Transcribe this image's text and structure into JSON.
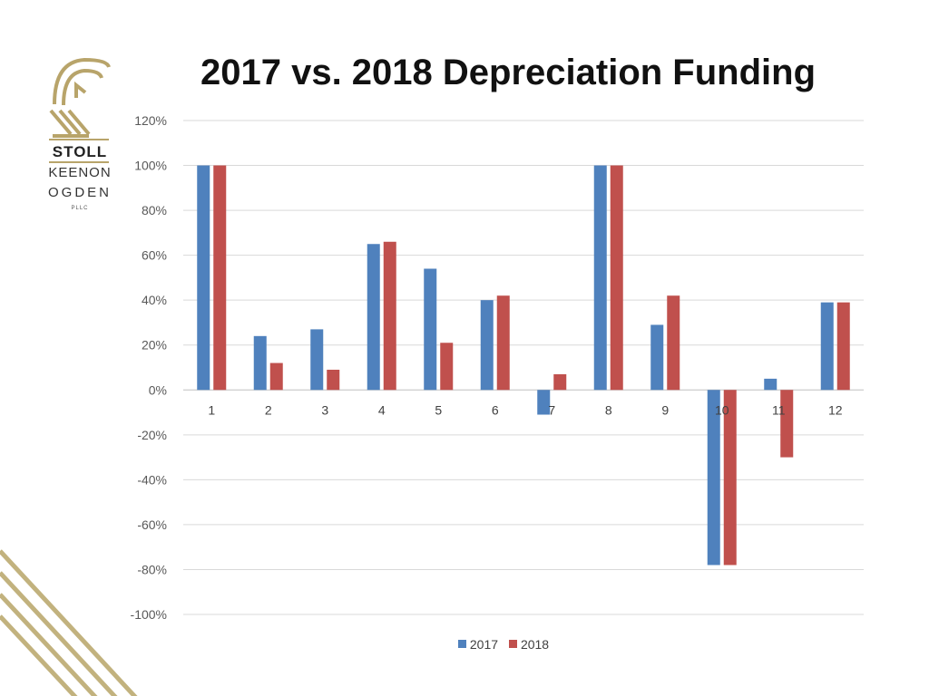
{
  "slide": {
    "title": "2017 vs. 2018 Depreciation Funding"
  },
  "logo": {
    "line1": "STOLL",
    "line2": "KEENON",
    "line3": "OGDEN",
    "line4": "PLLC",
    "color": "#b8a46a"
  },
  "chart_data": {
    "type": "bar",
    "title": "",
    "xlabel": "",
    "ylabel": "",
    "categories": [
      "1",
      "2",
      "3",
      "4",
      "5",
      "6",
      "7",
      "8",
      "9",
      "10",
      "11",
      "12"
    ],
    "series": [
      {
        "name": "2017",
        "color": "#4f81bd",
        "values": [
          100,
          24,
          27,
          65,
          54,
          40,
          -11,
          100,
          29,
          -78,
          5,
          39
        ]
      },
      {
        "name": "2018",
        "color": "#c0504d",
        "values": [
          100,
          12,
          9,
          66,
          21,
          42,
          7,
          100,
          42,
          -78,
          -30,
          39
        ]
      }
    ],
    "ylim": [
      -100,
      120
    ],
    "yticks": [
      120,
      100,
      80,
      60,
      40,
      20,
      0,
      -20,
      -40,
      -60,
      -80,
      -100
    ],
    "ytick_labels": [
      "120%",
      "100%",
      "80%",
      "60%",
      "40%",
      "20%",
      "0%",
      "-20%",
      "-40%",
      "-60%",
      "-80%",
      "-100%"
    ],
    "grid": true,
    "legend": "bottom-center"
  }
}
